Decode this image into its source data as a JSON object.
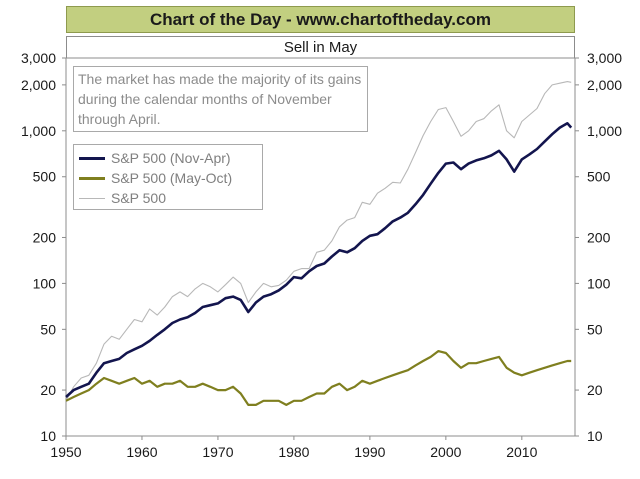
{
  "header": {
    "title": "Chart of the Day - www.chartoftheday.com"
  },
  "chart_data": {
    "type": "line",
    "title": "Sell in May",
    "xlabel": "",
    "ylabel": "",
    "y_scale": "log",
    "xlim": [
      1950,
      2017
    ],
    "ylim": [
      10,
      3000
    ],
    "x_ticks": [
      "1950",
      "1960",
      "1970",
      "1980",
      "1990",
      "2000",
      "2010"
    ],
    "x_tick_values": [
      1950,
      1960,
      1970,
      1980,
      1990,
      2000,
      2010
    ],
    "y_ticks": [
      "10",
      "20",
      "50",
      "100",
      "200",
      "500",
      "1,000",
      "2,000",
      "3,000"
    ],
    "y_tick_values": [
      10,
      20,
      50,
      100,
      200,
      500,
      1000,
      2000,
      3000
    ],
    "annotation": "The market has made the majority of its gains during the calendar months of November through April.",
    "legend_position": "top-left",
    "series": [
      {
        "name": "S&P 500 (Nov-Apr)",
        "color": "#13154e",
        "x": [
          1950,
          1951,
          1952,
          1953,
          1954,
          1955,
          1956,
          1957,
          1958,
          1959,
          1960,
          1961,
          1962,
          1963,
          1964,
          1965,
          1966,
          1967,
          1968,
          1969,
          1970,
          1971,
          1972,
          1973,
          1974,
          1975,
          1976,
          1977,
          1978,
          1979,
          1980,
          1981,
          1982,
          1983,
          1984,
          1985,
          1986,
          1987,
          1988,
          1989,
          1990,
          1991,
          1992,
          1993,
          1994,
          1995,
          1996,
          1997,
          1998,
          1999,
          2000,
          2001,
          2002,
          2003,
          2004,
          2005,
          2006,
          2007,
          2008,
          2009,
          2010,
          2011,
          2012,
          2013,
          2014,
          2015,
          2016,
          2016.5
        ],
        "values": [
          18,
          20,
          21,
          22,
          26,
          30,
          31,
          32,
          35,
          37,
          39,
          42,
          46,
          50,
          55,
          58,
          60,
          64,
          70,
          72,
          74,
          80,
          82,
          78,
          65,
          75,
          82,
          85,
          90,
          98,
          110,
          108,
          120,
          130,
          135,
          150,
          165,
          160,
          170,
          190,
          205,
          210,
          230,
          255,
          270,
          290,
          330,
          380,
          450,
          530,
          610,
          620,
          560,
          610,
          640,
          660,
          690,
          740,
          650,
          540,
          650,
          700,
          760,
          850,
          950,
          1050,
          1120,
          1050
        ]
      },
      {
        "name": "S&P 500 (May-Oct)",
        "color": "#7f7f1f",
        "x": [
          1950,
          1951,
          1952,
          1953,
          1954,
          1955,
          1956,
          1957,
          1958,
          1959,
          1960,
          1961,
          1962,
          1963,
          1964,
          1965,
          1966,
          1967,
          1968,
          1969,
          1970,
          1971,
          1972,
          1973,
          1974,
          1975,
          1976,
          1977,
          1978,
          1979,
          1980,
          1981,
          1982,
          1983,
          1984,
          1985,
          1986,
          1987,
          1988,
          1989,
          1990,
          1991,
          1992,
          1993,
          1994,
          1995,
          1996,
          1997,
          1998,
          1999,
          2000,
          2001,
          2002,
          2003,
          2004,
          2005,
          2006,
          2007,
          2008,
          2009,
          2010,
          2011,
          2012,
          2013,
          2014,
          2015,
          2016,
          2016.5
        ],
        "values": [
          17,
          18,
          19,
          20,
          22,
          24,
          23,
          22,
          23,
          24,
          22,
          23,
          21,
          22,
          22,
          23,
          21,
          21,
          22,
          21,
          20,
          20,
          21,
          19,
          16,
          16,
          17,
          17,
          17,
          16,
          17,
          17,
          18,
          19,
          19,
          21,
          22,
          20,
          21,
          23,
          22,
          23,
          24,
          25,
          26,
          27,
          29,
          31,
          33,
          36,
          35,
          31,
          28,
          30,
          30,
          31,
          32,
          33,
          28,
          26,
          25,
          26,
          27,
          28,
          29,
          30,
          31,
          31
        ]
      },
      {
        "name": "S&P 500",
        "color": "#b8b8b8",
        "x": [
          1950,
          1951,
          1952,
          1953,
          1954,
          1955,
          1956,
          1957,
          1958,
          1959,
          1960,
          1961,
          1962,
          1963,
          1964,
          1965,
          1966,
          1967,
          1968,
          1969,
          1970,
          1971,
          1972,
          1973,
          1974,
          1975,
          1976,
          1977,
          1978,
          1979,
          1980,
          1981,
          1982,
          1983,
          1984,
          1985,
          1986,
          1987,
          1988,
          1989,
          1990,
          1991,
          1992,
          1993,
          1994,
          1995,
          1996,
          1997,
          1998,
          1999,
          2000,
          2001,
          2002,
          2003,
          2004,
          2005,
          2006,
          2007,
          2008,
          2009,
          2010,
          2011,
          2012,
          2013,
          2014,
          2015,
          2016,
          2016.5
        ],
        "values": [
          17,
          21,
          24,
          25,
          30,
          40,
          45,
          43,
          50,
          58,
          56,
          68,
          62,
          70,
          82,
          88,
          82,
          92,
          100,
          95,
          88,
          98,
          110,
          100,
          75,
          88,
          100,
          95,
          97,
          105,
          120,
          125,
          125,
          160,
          165,
          190,
          235,
          260,
          270,
          340,
          330,
          390,
          420,
          460,
          455,
          560,
          720,
          930,
          1150,
          1380,
          1420,
          1150,
          920,
          1000,
          1150,
          1200,
          1350,
          1480,
          1000,
          900,
          1150,
          1270,
          1400,
          1750,
          2000,
          2050,
          2100,
          2080
        ]
      }
    ]
  }
}
